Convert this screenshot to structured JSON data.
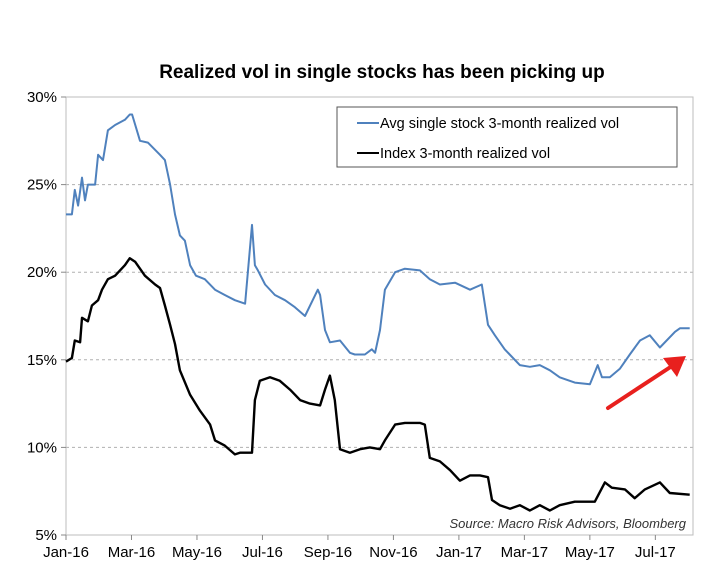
{
  "chart_data": {
    "type": "line",
    "title": "Realized vol in single stocks has been picking up",
    "xlabel": "",
    "ylabel": "",
    "x_units": "months since Jan-2016",
    "xlim": [
      0,
      19.15
    ],
    "ylim": [
      5,
      30
    ],
    "y_ticks": [
      {
        "value": 30,
        "label": "30%"
      },
      {
        "value": 25,
        "label": "25%"
      },
      {
        "value": 20,
        "label": "20%"
      },
      {
        "value": 15,
        "label": "15%"
      },
      {
        "value": 10,
        "label": "10%"
      },
      {
        "value": 5,
        "label": "5%"
      }
    ],
    "x_ticks": [
      {
        "value": 0,
        "label": "Jan-16"
      },
      {
        "value": 2,
        "label": "Mar-16"
      },
      {
        "value": 4,
        "label": "May-16"
      },
      {
        "value": 6,
        "label": "Jul-16"
      },
      {
        "value": 8,
        "label": "Sep-16"
      },
      {
        "value": 10,
        "label": "Nov-16"
      },
      {
        "value": 12,
        "label": "Jan-17"
      },
      {
        "value": 14,
        "label": "Mar-17"
      },
      {
        "value": 16,
        "label": "May-17"
      },
      {
        "value": 18,
        "label": "Jul-17"
      }
    ],
    "grid": "horizontal dashed",
    "legend_position": "top-right",
    "series": [
      {
        "name": "Avg single stock 3-month realized vol",
        "color": "#4f81bd",
        "x": [
          0,
          0.18,
          0.27,
          0.37,
          0.49,
          0.58,
          0.67,
          0.89,
          0.98,
          1.13,
          1.28,
          1.5,
          1.8,
          1.95,
          2.02,
          2.26,
          2.5,
          2.87,
          3.02,
          3.18,
          3.33,
          3.48,
          3.63,
          3.79,
          3.97,
          4.24,
          4.55,
          4.85,
          5.16,
          5.47,
          5.68,
          5.77,
          5.86,
          6.08,
          6.38,
          6.69,
          6.99,
          7.3,
          7.69,
          7.76,
          7.91,
          8.06,
          8.37,
          8.67,
          8.82,
          9.13,
          9.34,
          9.44,
          9.59,
          9.74,
          10.05,
          10.35,
          10.81,
          11.11,
          11.42,
          11.88,
          12.34,
          12.7,
          12.89,
          13.1,
          13.4,
          13.86,
          14.17,
          14.47,
          14.78,
          15.08,
          15.54,
          16.0,
          16.24,
          16.37,
          16.61,
          16.92,
          17.22,
          17.53,
          17.83,
          18.14,
          18.6,
          18.75,
          19.05
        ],
        "y": [
          23.3,
          23.3,
          24.7,
          23.8,
          25.4,
          24.1,
          25.0,
          25.0,
          26.7,
          26.4,
          28.1,
          28.4,
          28.7,
          29.0,
          29.0,
          27.5,
          27.4,
          26.7,
          26.4,
          25.0,
          23.3,
          22.1,
          21.8,
          20.4,
          19.8,
          19.6,
          19.0,
          18.7,
          18.4,
          18.2,
          22.7,
          20.4,
          20.1,
          19.3,
          18.7,
          18.4,
          18.0,
          17.5,
          19.0,
          18.7,
          16.7,
          16.0,
          16.1,
          15.4,
          15.3,
          15.3,
          15.6,
          15.4,
          16.7,
          19.0,
          20.0,
          20.2,
          20.1,
          19.6,
          19.3,
          19.4,
          19.0,
          19.3,
          17.0,
          16.4,
          15.6,
          14.7,
          14.6,
          14.7,
          14.4,
          14.0,
          13.7,
          13.6,
          14.7,
          14.0,
          14.0,
          14.5,
          15.3,
          16.1,
          16.4,
          15.7,
          16.6,
          16.8,
          16.8
        ]
      },
      {
        "name": "Index 3-month realized vol",
        "color": "#000000",
        "x": [
          0,
          0.18,
          0.27,
          0.43,
          0.49,
          0.67,
          0.79,
          0.98,
          1.1,
          1.28,
          1.5,
          1.8,
          1.95,
          2.11,
          2.41,
          2.72,
          2.87,
          3.02,
          3.18,
          3.33,
          3.48,
          3.79,
          4.09,
          4.4,
          4.55,
          4.85,
          5.16,
          5.31,
          5.68,
          5.77,
          5.92,
          6.23,
          6.53,
          6.84,
          7.15,
          7.45,
          7.76,
          7.91,
          8.06,
          8.21,
          8.37,
          8.67,
          8.98,
          9.28,
          9.59,
          9.74,
          10.05,
          10.35,
          10.81,
          10.96,
          11.11,
          11.42,
          11.73,
          12.03,
          12.34,
          12.64,
          12.89,
          13.01,
          13.25,
          13.56,
          13.86,
          14.17,
          14.47,
          14.78,
          15.08,
          15.54,
          16.15,
          16.46,
          16.67,
          17.07,
          17.37,
          17.68,
          18.14,
          18.44,
          19.05
        ],
        "y": [
          14.9,
          15.1,
          16.1,
          16.0,
          17.4,
          17.2,
          18.1,
          18.4,
          19.0,
          19.6,
          19.8,
          20.4,
          20.8,
          20.6,
          19.8,
          19.3,
          19.1,
          18.1,
          17.0,
          15.9,
          14.4,
          13.0,
          12.1,
          11.3,
          10.4,
          10.1,
          9.6,
          9.7,
          9.7,
          12.7,
          13.8,
          14.0,
          13.8,
          13.3,
          12.7,
          12.5,
          12.4,
          13.3,
          14.1,
          12.7,
          9.9,
          9.7,
          9.9,
          10.0,
          9.9,
          10.4,
          11.3,
          11.4,
          11.4,
          11.3,
          9.4,
          9.2,
          8.7,
          8.1,
          8.4,
          8.4,
          8.3,
          7.0,
          6.7,
          6.5,
          6.7,
          6.4,
          6.7,
          6.4,
          6.7,
          6.9,
          6.9,
          8.0,
          7.7,
          7.6,
          7.1,
          7.6,
          8.0,
          7.4,
          7.3
        ]
      }
    ],
    "annotations": {
      "source": "Source: Macro Risk Advisors, Bloomberg",
      "arrow_color": "#e8201e"
    }
  }
}
